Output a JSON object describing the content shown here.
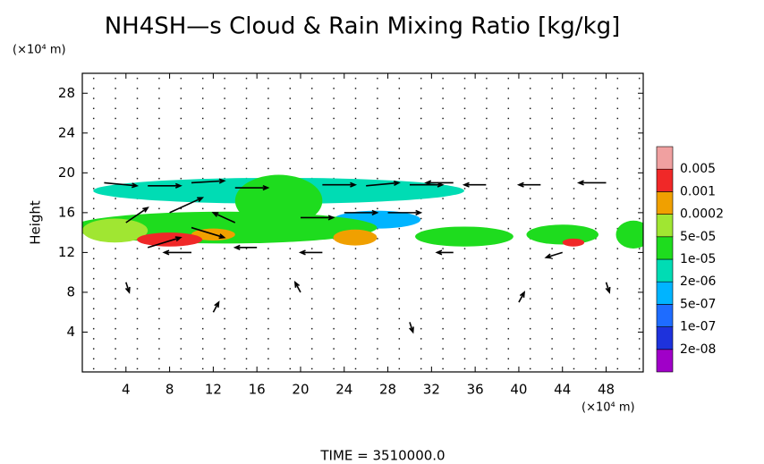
{
  "chart_data": {
    "type": "contour",
    "title": "NH4SH—s Cloud & Rain Mixing Ratio [kg/kg]",
    "ylabel": "Height",
    "x_unit": "(×10⁴ m)",
    "y_unit": "(×10⁴ m)",
    "footer": "TIME = 3510000.0",
    "xlim": [
      0,
      51.4
    ],
    "ylim": [
      0,
      30
    ],
    "xticks": [
      4,
      8,
      12,
      16,
      20,
      24,
      28,
      32,
      36,
      40,
      44,
      48
    ],
    "yticks": [
      4,
      8,
      12,
      16,
      20,
      24,
      28
    ],
    "levels": [
      {
        "value": 2e-08,
        "label": "2e-08"
      },
      {
        "value": 1e-07,
        "label": "1e-07"
      },
      {
        "value": 5e-07,
        "label": "5e-07"
      },
      {
        "value": 2e-06,
        "label": "2e-06"
      },
      {
        "value": 1e-05,
        "label": "1e-05"
      },
      {
        "value": 5e-05,
        "label": "5e-05"
      },
      0.0002,
      0.001,
      0.005
    ],
    "colors": [
      "#a000c8",
      "#1e32dc",
      "#1e6cff",
      "#00b4ff",
      "#00dcb4",
      "#1edc1e",
      "#a0e632",
      "#f0a000",
      "#f02828",
      "#f0a0a0"
    ],
    "regions": [
      {
        "x": 18,
        "y": 18.2,
        "rx": 17,
        "ry": 1.3,
        "value": 2e-06
      },
      {
        "x": 18,
        "y": 17.2,
        "rx": 4,
        "ry": 2.6,
        "value": 1e-05
      },
      {
        "x": 27,
        "y": 15.3,
        "rx": 4,
        "ry": 0.9,
        "value": 1e-06
      },
      {
        "x": 13,
        "y": 14.5,
        "rx": 14,
        "ry": 1.6,
        "value": 1e-05
      },
      {
        "x": 3,
        "y": 14.2,
        "rx": 3,
        "ry": 1.2,
        "value": 5e-05
      },
      {
        "x": 12,
        "y": 13.8,
        "rx": 2,
        "ry": 0.6,
        "value": 0.0002
      },
      {
        "x": 8,
        "y": 13.3,
        "rx": 3,
        "ry": 0.7,
        "value": 0.001
      },
      {
        "x": 25,
        "y": 13.5,
        "rx": 2,
        "ry": 0.8,
        "value": 0.0002
      },
      {
        "x": 35,
        "y": 13.6,
        "rx": 4.5,
        "ry": 1,
        "value": 1e-05
      },
      {
        "x": 44,
        "y": 13.8,
        "rx": 3.3,
        "ry": 1,
        "value": 1e-05
      },
      {
        "x": 45,
        "y": 13,
        "rx": 1,
        "ry": 0.4,
        "value": 0.001
      },
      {
        "x": 50.5,
        "y": 13.8,
        "rx": 1.6,
        "ry": 1.4,
        "value": 1e-05
      }
    ],
    "vectors": [
      {
        "x": 2,
        "y": 19,
        "u": 3,
        "v": -0.3
      },
      {
        "x": 6,
        "y": 18.7,
        "u": 3,
        "v": 0
      },
      {
        "x": 10,
        "y": 19,
        "u": 3,
        "v": 0.2
      },
      {
        "x": 14,
        "y": 18.5,
        "u": 3,
        "v": 0
      },
      {
        "x": 22,
        "y": 18.8,
        "u": 3,
        "v": 0
      },
      {
        "x": 26,
        "y": 18.7,
        "u": 3,
        "v": 0.3
      },
      {
        "x": 30,
        "y": 18.8,
        "u": 3,
        "v": 0
      },
      {
        "x": 34,
        "y": 19,
        "u": -2.5,
        "v": 0
      },
      {
        "x": 37,
        "y": 18.8,
        "u": -2,
        "v": 0
      },
      {
        "x": 42,
        "y": 18.8,
        "u": -2,
        "v": 0
      },
      {
        "x": 48,
        "y": 19,
        "u": -2.5,
        "v": 0
      },
      {
        "x": 4,
        "y": 15,
        "u": 2,
        "v": 1.5
      },
      {
        "x": 8,
        "y": 16,
        "u": 3,
        "v": 1.5
      },
      {
        "x": 10,
        "y": 14.5,
        "u": 3,
        "v": -1
      },
      {
        "x": 14,
        "y": 15,
        "u": -2,
        "v": 1
      },
      {
        "x": 20,
        "y": 15.5,
        "u": 3,
        "v": 0
      },
      {
        "x": 24,
        "y": 16,
        "u": 3,
        "v": 0
      },
      {
        "x": 28,
        "y": 16,
        "u": 3,
        "v": 0
      },
      {
        "x": 6,
        "y": 12.5,
        "u": 3,
        "v": 1
      },
      {
        "x": 10,
        "y": 12,
        "u": -2.5,
        "v": 0
      },
      {
        "x": 16,
        "y": 12.5,
        "u": -2,
        "v": 0
      },
      {
        "x": 22,
        "y": 12,
        "u": -2,
        "v": 0
      },
      {
        "x": 34,
        "y": 12,
        "u": -1.5,
        "v": 0
      },
      {
        "x": 44,
        "y": 12,
        "u": -1.5,
        "v": -0.5
      },
      {
        "x": 4,
        "y": 9,
        "u": 0.3,
        "v": -1
      },
      {
        "x": 12,
        "y": 6,
        "u": 0.5,
        "v": 1
      },
      {
        "x": 20,
        "y": 8,
        "u": -0.5,
        "v": 1
      },
      {
        "x": 30,
        "y": 5,
        "u": 0.3,
        "v": -1
      },
      {
        "x": 40,
        "y": 7,
        "u": 0.5,
        "v": 1
      },
      {
        "x": 48,
        "y": 9,
        "u": 0.3,
        "v": -1
      }
    ]
  }
}
